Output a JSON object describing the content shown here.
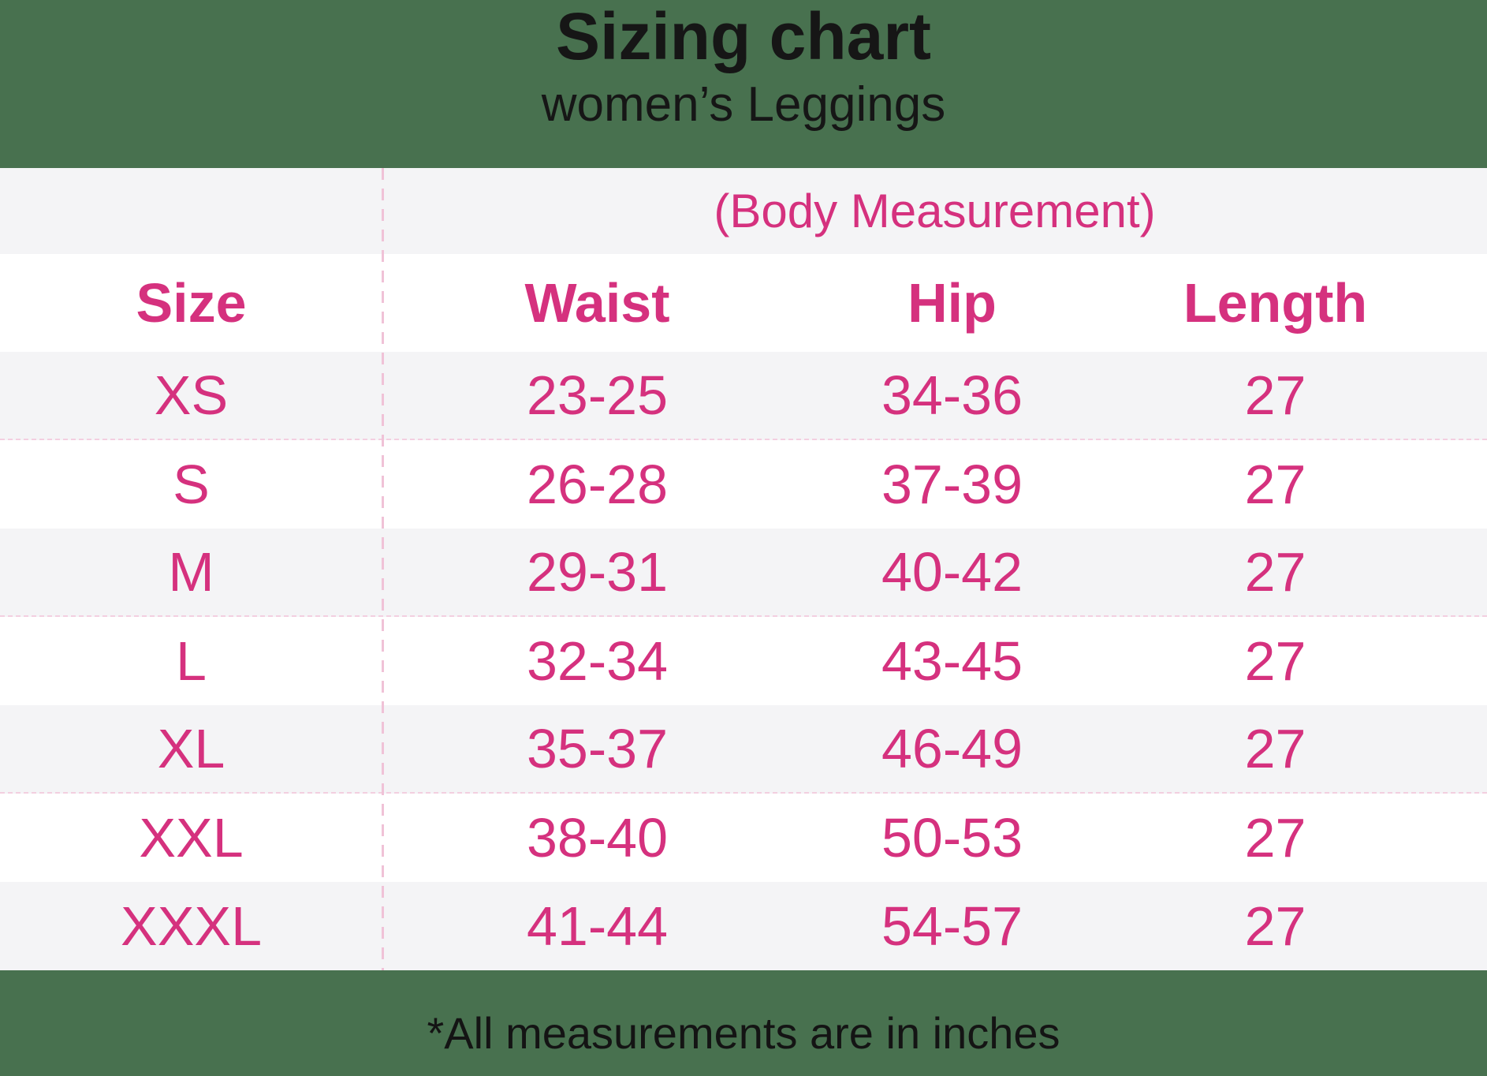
{
  "header": {
    "title": "Sizing chart",
    "subtitle": "women’s Leggings"
  },
  "table": {
    "group_header": "(Body Measurement)",
    "columns": [
      "Size",
      "Waist",
      "Hip",
      "Length"
    ],
    "rows": [
      {
        "size": "XS",
        "waist": "23-25",
        "hip": "34-36",
        "length": "27"
      },
      {
        "size": "S",
        "waist": "26-28",
        "hip": "37-39",
        "length": "27"
      },
      {
        "size": "M",
        "waist": "29-31",
        "hip": "40-42",
        "length": "27"
      },
      {
        "size": "L",
        "waist": "32-34",
        "hip": "43-45",
        "length": "27"
      },
      {
        "size": "XL",
        "waist": "35-37",
        "hip": "46-49",
        "length": "27"
      },
      {
        "size": "XXL",
        "waist": "38-40",
        "hip": "50-53",
        "length": "27"
      },
      {
        "size": "XXXL",
        "waist": "41-44",
        "hip": "54-57",
        "length": "27"
      }
    ]
  },
  "footer": {
    "note": "*All measurements are in inches"
  },
  "colors": {
    "accent_pink": "#d5317e",
    "background_green": "#48714f",
    "row_stripe_gray": "#f4f4f6",
    "row_plain_white": "#ffffff",
    "divider_pink": "#f0c2d7",
    "text_black": "#161616"
  },
  "chart_data": {
    "type": "table",
    "title": "Sizing chart",
    "subtitle": "women’s Leggings",
    "group_header": "(Body Measurement)",
    "columns": [
      "Size",
      "Waist",
      "Hip",
      "Length"
    ],
    "rows": [
      [
        "XS",
        "23-25",
        "34-36",
        "27"
      ],
      [
        "S",
        "26-28",
        "37-39",
        "27"
      ],
      [
        "M",
        "29-31",
        "40-42",
        "27"
      ],
      [
        "L",
        "32-34",
        "43-45",
        "27"
      ],
      [
        "XL",
        "35-37",
        "46-49",
        "27"
      ],
      [
        "XXL",
        "38-40",
        "50-53",
        "27"
      ],
      [
        "XXXL",
        "41-44",
        "54-57",
        "27"
      ]
    ],
    "units_note": "*All measurements are in inches"
  }
}
